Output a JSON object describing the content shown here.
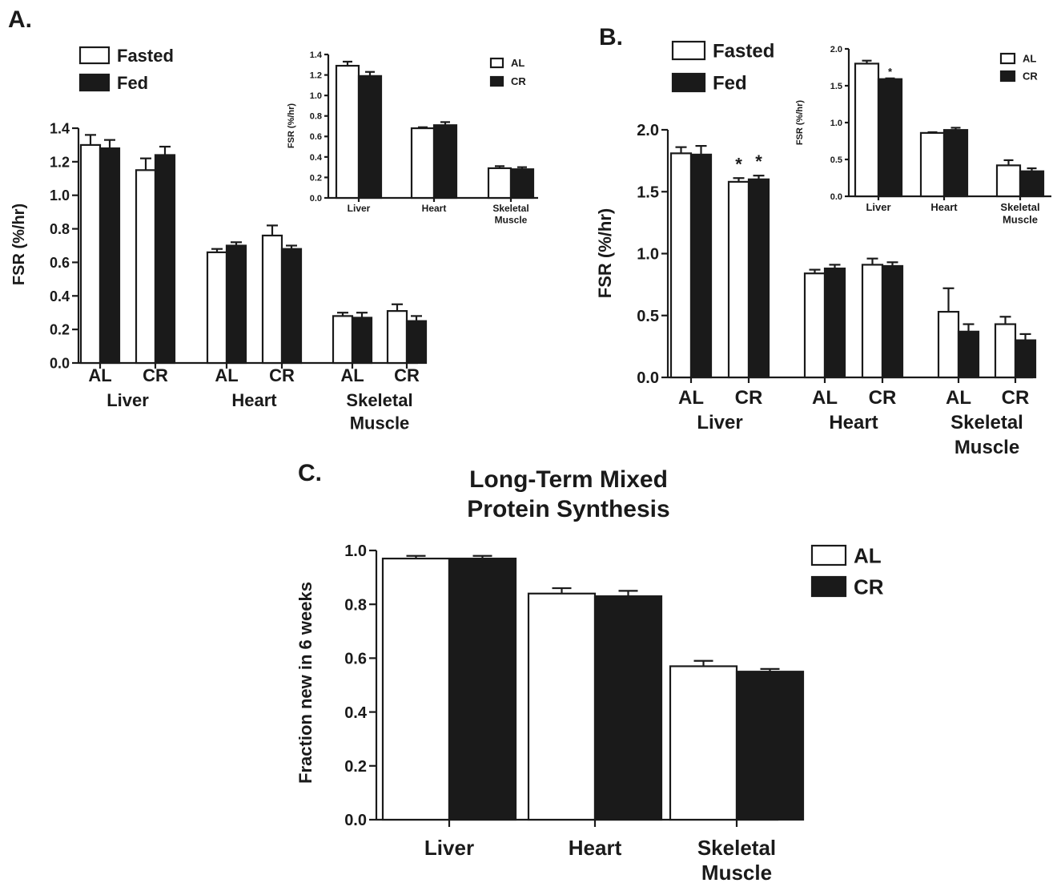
{
  "colors": {
    "open": "#ffffff",
    "solid": "#1a1a1a"
  },
  "chart_data": [
    {
      "id": "A-main",
      "panel_label": "A.",
      "type": "bar",
      "ylabel": "FSR  (%/hr)",
      "ylim": [
        0,
        1.4
      ],
      "yticks": [
        "0.0",
        "0.2",
        "0.4",
        "0.6",
        "0.8",
        "1.0",
        "1.2",
        "1.4"
      ],
      "legend": [
        "Fasted",
        "Fed"
      ],
      "groups": [
        {
          "name": "Liver",
          "categories": [
            "AL",
            "CR"
          ],
          "values": [
            [
              1.3,
              1.28
            ],
            [
              1.15,
              1.24
            ]
          ],
          "errors": [
            [
              0.06,
              0.05
            ],
            [
              0.07,
              0.05
            ]
          ]
        },
        {
          "name": "Heart",
          "categories": [
            "AL",
            "CR"
          ],
          "values": [
            [
              0.66,
              0.7
            ],
            [
              0.76,
              0.68
            ]
          ],
          "errors": [
            [
              0.02,
              0.02
            ],
            [
              0.06,
              0.02
            ]
          ]
        },
        {
          "name": "Skeletal Muscle",
          "categories": [
            "AL",
            "CR"
          ],
          "values": [
            [
              0.28,
              0.27
            ],
            [
              0.31,
              0.25
            ]
          ],
          "errors": [
            [
              0.02,
              0.03
            ],
            [
              0.04,
              0.03
            ]
          ]
        }
      ]
    },
    {
      "id": "A-inset",
      "type": "bar",
      "ylabel": "FSR  (%/hr)",
      "ylim": [
        0,
        1.4
      ],
      "yticks": [
        "0.0",
        "0.2",
        "0.4",
        "0.6",
        "0.8",
        "1.0",
        "1.2",
        "1.4"
      ],
      "legend": [
        "AL",
        "CR"
      ],
      "categories": [
        "Liver",
        "Heart",
        "Skeletal Muscle"
      ],
      "series": [
        {
          "name": "AL",
          "values": [
            1.29,
            0.68,
            0.29
          ],
          "errors": [
            0.04,
            0.01,
            0.02
          ]
        },
        {
          "name": "CR",
          "values": [
            1.19,
            0.71,
            0.28
          ],
          "errors": [
            0.04,
            0.03,
            0.02
          ]
        }
      ]
    },
    {
      "id": "B-main",
      "panel_label": "B.",
      "type": "bar",
      "ylabel": "FSR  (%/hr)",
      "ylim": [
        0,
        2.0
      ],
      "yticks": [
        "0.0",
        "0.5",
        "1.0",
        "1.5",
        "2.0"
      ],
      "legend": [
        "Fasted",
        "Fed"
      ],
      "annotations": [
        "*",
        "*"
      ],
      "groups": [
        {
          "name": "Liver",
          "categories": [
            "AL",
            "CR"
          ],
          "values": [
            [
              1.81,
              1.8
            ],
            [
              1.58,
              1.6
            ]
          ],
          "errors": [
            [
              0.05,
              0.07
            ],
            [
              0.03,
              0.03
            ]
          ]
        },
        {
          "name": "Heart",
          "categories": [
            "AL",
            "CR"
          ],
          "values": [
            [
              0.84,
              0.88
            ],
            [
              0.91,
              0.9
            ]
          ],
          "errors": [
            [
              0.03,
              0.03
            ],
            [
              0.05,
              0.03
            ]
          ]
        },
        {
          "name": "Skeletal Muscle",
          "categories": [
            "AL",
            "CR"
          ],
          "values": [
            [
              0.53,
              0.37
            ],
            [
              0.43,
              0.3
            ]
          ],
          "errors": [
            [
              0.19,
              0.06
            ],
            [
              0.06,
              0.05
            ]
          ]
        }
      ]
    },
    {
      "id": "B-inset",
      "type": "bar",
      "ylabel": "FSR  (%/hr)",
      "ylim": [
        0,
        2.0
      ],
      "yticks": [
        "0.0",
        "0.5",
        "1.0",
        "1.5",
        "2.0"
      ],
      "legend": [
        "AL",
        "CR"
      ],
      "annotations": [
        "*"
      ],
      "categories": [
        "Liver",
        "Heart",
        "Skeletal Muscle"
      ],
      "series": [
        {
          "name": "AL",
          "values": [
            1.8,
            0.86,
            0.42
          ],
          "errors": [
            0.04,
            0.01,
            0.07
          ]
        },
        {
          "name": "CR",
          "values": [
            1.59,
            0.9,
            0.34
          ],
          "errors": [
            0.01,
            0.03,
            0.04
          ]
        }
      ]
    },
    {
      "id": "C",
      "panel_label": "C.",
      "type": "bar",
      "title": "Long-Term Mixed Protein Synthesis",
      "title_lines": [
        "Long-Term Mixed",
        "Protein Synthesis"
      ],
      "ylabel": "Fraction new in 6 weeks",
      "ylim": [
        0,
        1.0
      ],
      "yticks": [
        "0.0",
        "0.2",
        "0.4",
        "0.6",
        "0.8",
        "1.0"
      ],
      "legend": [
        "AL",
        "CR"
      ],
      "categories": [
        "Liver",
        "Heart",
        "Skeletal Muscle"
      ],
      "series": [
        {
          "name": "AL",
          "values": [
            0.97,
            0.84,
            0.57
          ],
          "errors": [
            0.01,
            0.02,
            0.02
          ]
        },
        {
          "name": "CR",
          "values": [
            0.97,
            0.83,
            0.55
          ],
          "errors": [
            0.01,
            0.02,
            0.01
          ]
        }
      ]
    }
  ]
}
